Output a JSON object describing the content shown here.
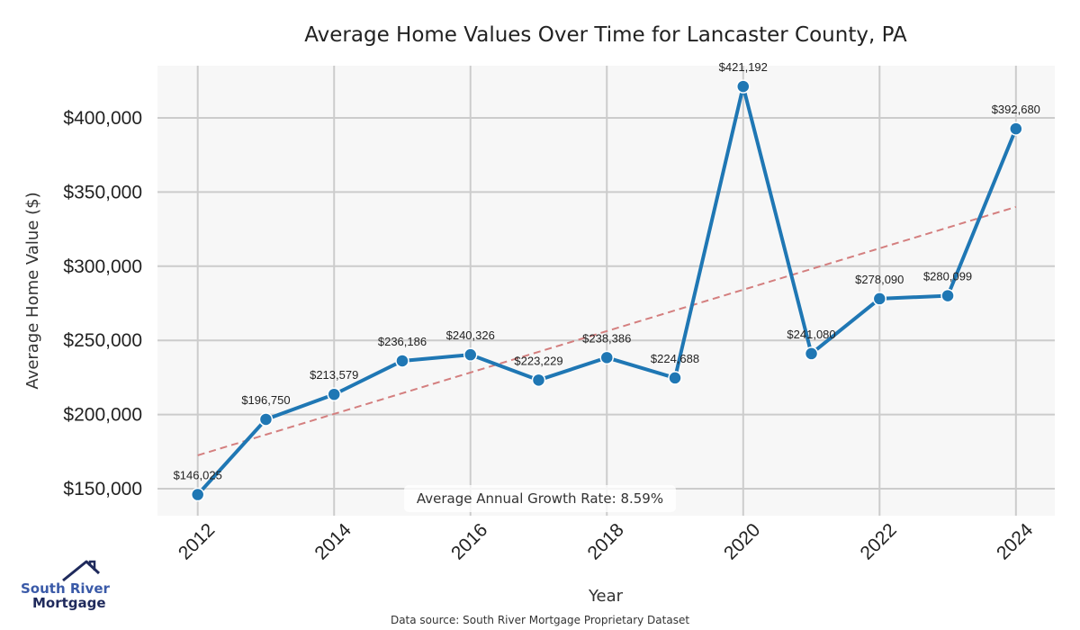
{
  "chart_data": {
    "type": "line",
    "title": "Average Home Values Over Time for Lancaster County, PA",
    "xlabel": "Year",
    "ylabel": "Average Home Value ($)",
    "x": [
      2012,
      2013,
      2014,
      2015,
      2016,
      2017,
      2018,
      2019,
      2020,
      2021,
      2022,
      2023,
      2024
    ],
    "series": [
      {
        "name": "Average Home Value",
        "color": "#1f77b4",
        "values": [
          146025,
          196750,
          213579,
          236186,
          240326,
          223229,
          238386,
          224688,
          421192,
          241080,
          278090,
          280099,
          392680
        ],
        "labels": [
          "$146,025",
          "$196,750",
          "$213,579",
          "$236,186",
          "$240,326",
          "$223,229",
          "$238,386",
          "$224,688",
          "$421,192",
          "$241,080",
          "$278,090",
          "$280,099",
          "$392,680"
        ]
      },
      {
        "name": "Trend line",
        "color": "#d47f7f",
        "style": "dashed",
        "x": [
          2012,
          2024
        ],
        "values": [
          172500,
          340000
        ]
      }
    ],
    "x_ticks": [
      2012,
      2014,
      2016,
      2018,
      2020,
      2022,
      2024
    ],
    "x_tick_labels": [
      "2012",
      "2014",
      "2016",
      "2018",
      "2020",
      "2022",
      "2024"
    ],
    "y_ticks": [
      150000,
      200000,
      250000,
      300000,
      350000,
      400000
    ],
    "y_tick_labels": [
      "$150,000",
      "$200,000",
      "$250,000",
      "$300,000",
      "$350,000",
      "$400,000"
    ],
    "xlim": [
      2011.41,
      2024.57
    ],
    "ylim": [
      131800,
      435200
    ],
    "grid": true,
    "annotation": "Average Annual Growth Rate: 8.59%",
    "annotation_placement": "bottom-center",
    "legend": "none"
  },
  "footer": {
    "source": "Data source: South River Mortgage Proprietary Dataset"
  },
  "logo": {
    "line1": "South River",
    "line2": "Mortgage"
  },
  "colors": {
    "plot_bg": "#f7f7f7",
    "grid": "#cccccc",
    "line": "#1f77b4",
    "trend": "#d47f7f",
    "logo_light": "#3a5aa8",
    "logo_dark": "#1f2a5c"
  }
}
